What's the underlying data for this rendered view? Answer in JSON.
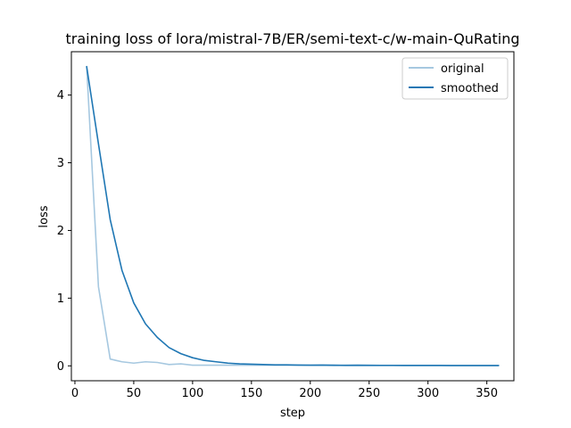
{
  "chart_data": {
    "type": "line",
    "title": "training loss of lora/mistral-7B/ER/semi-text-c/w-main-QuRating",
    "xlabel": "step",
    "ylabel": "loss",
    "xlim": [
      -3,
      373
    ],
    "ylim": [
      -0.22,
      4.64
    ],
    "xticks": [
      0,
      50,
      100,
      150,
      200,
      250,
      300,
      350
    ],
    "yticks": [
      0,
      1,
      2,
      3,
      4
    ],
    "legend_position": "upper-right",
    "colors": {
      "original": "#a6c8e0",
      "smoothed": "#1f77b4"
    },
    "x": [
      10,
      20,
      30,
      40,
      50,
      60,
      70,
      80,
      90,
      100,
      110,
      120,
      130,
      140,
      150,
      160,
      170,
      180,
      190,
      200,
      210,
      220,
      230,
      240,
      250,
      260,
      270,
      280,
      290,
      300,
      310,
      320,
      330,
      340,
      350,
      360
    ],
    "series": [
      {
        "name": "original",
        "values": [
          4.42,
          1.17,
          0.1,
          0.06,
          0.04,
          0.06,
          0.05,
          0.02,
          0.03,
          0.01,
          0.01,
          0.01,
          0.01,
          0.01,
          0.01,
          0.01,
          0.01,
          0.01,
          0.01,
          0.01,
          0.01,
          0.005,
          0.005,
          0.005,
          0.005,
          0.005,
          0.005,
          0.005,
          0.005,
          0.005,
          0.005,
          0.005,
          0.005,
          0.005,
          0.005,
          0.005
        ]
      },
      {
        "name": "smoothed",
        "values": [
          4.42,
          3.28,
          2.16,
          1.41,
          0.93,
          0.62,
          0.42,
          0.27,
          0.18,
          0.12,
          0.08,
          0.06,
          0.04,
          0.03,
          0.025,
          0.02,
          0.015,
          0.015,
          0.012,
          0.01,
          0.012,
          0.01,
          0.008,
          0.01,
          0.008,
          0.007,
          0.007,
          0.006,
          0.006,
          0.006,
          0.006,
          0.005,
          0.005,
          0.005,
          0.005,
          0.005
        ]
      }
    ]
  }
}
